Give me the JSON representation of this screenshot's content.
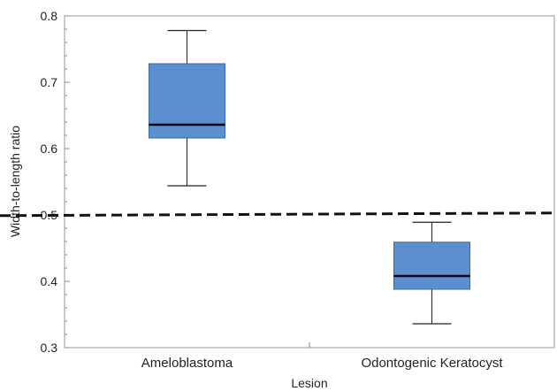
{
  "chart_data": {
    "type": "boxplot",
    "title": "",
    "xlabel": "Lesion",
    "ylabel": "Width-to-length ratio",
    "ylim": [
      0.3,
      0.8
    ],
    "yticks": [
      0.3,
      0.4,
      0.5,
      0.6,
      0.7,
      0.8
    ],
    "ytick_labels": [
      "0.3",
      "0.4",
      "0.5",
      "0.6",
      "0.7",
      "0.8"
    ],
    "minor_tick_step": 0.02,
    "categories": [
      "Ameloblastoma",
      "Odontogenic Keratocyst"
    ],
    "boxes": [
      {
        "category": "Ameloblastoma",
        "min": 0.544,
        "q1": 0.616,
        "median": 0.636,
        "q3": 0.728,
        "max": 0.778
      },
      {
        "category": "Odontogenic Keratocyst",
        "min": 0.336,
        "q1": 0.388,
        "median": 0.408,
        "q3": 0.459,
        "max": 0.489
      }
    ],
    "reference_line": {
      "start": 0.499,
      "end": 0.503,
      "style": "dashed"
    },
    "box_color": "#5b8fcf",
    "box_edge_color": "#3a6aa8",
    "grid": false,
    "legend": "none"
  }
}
